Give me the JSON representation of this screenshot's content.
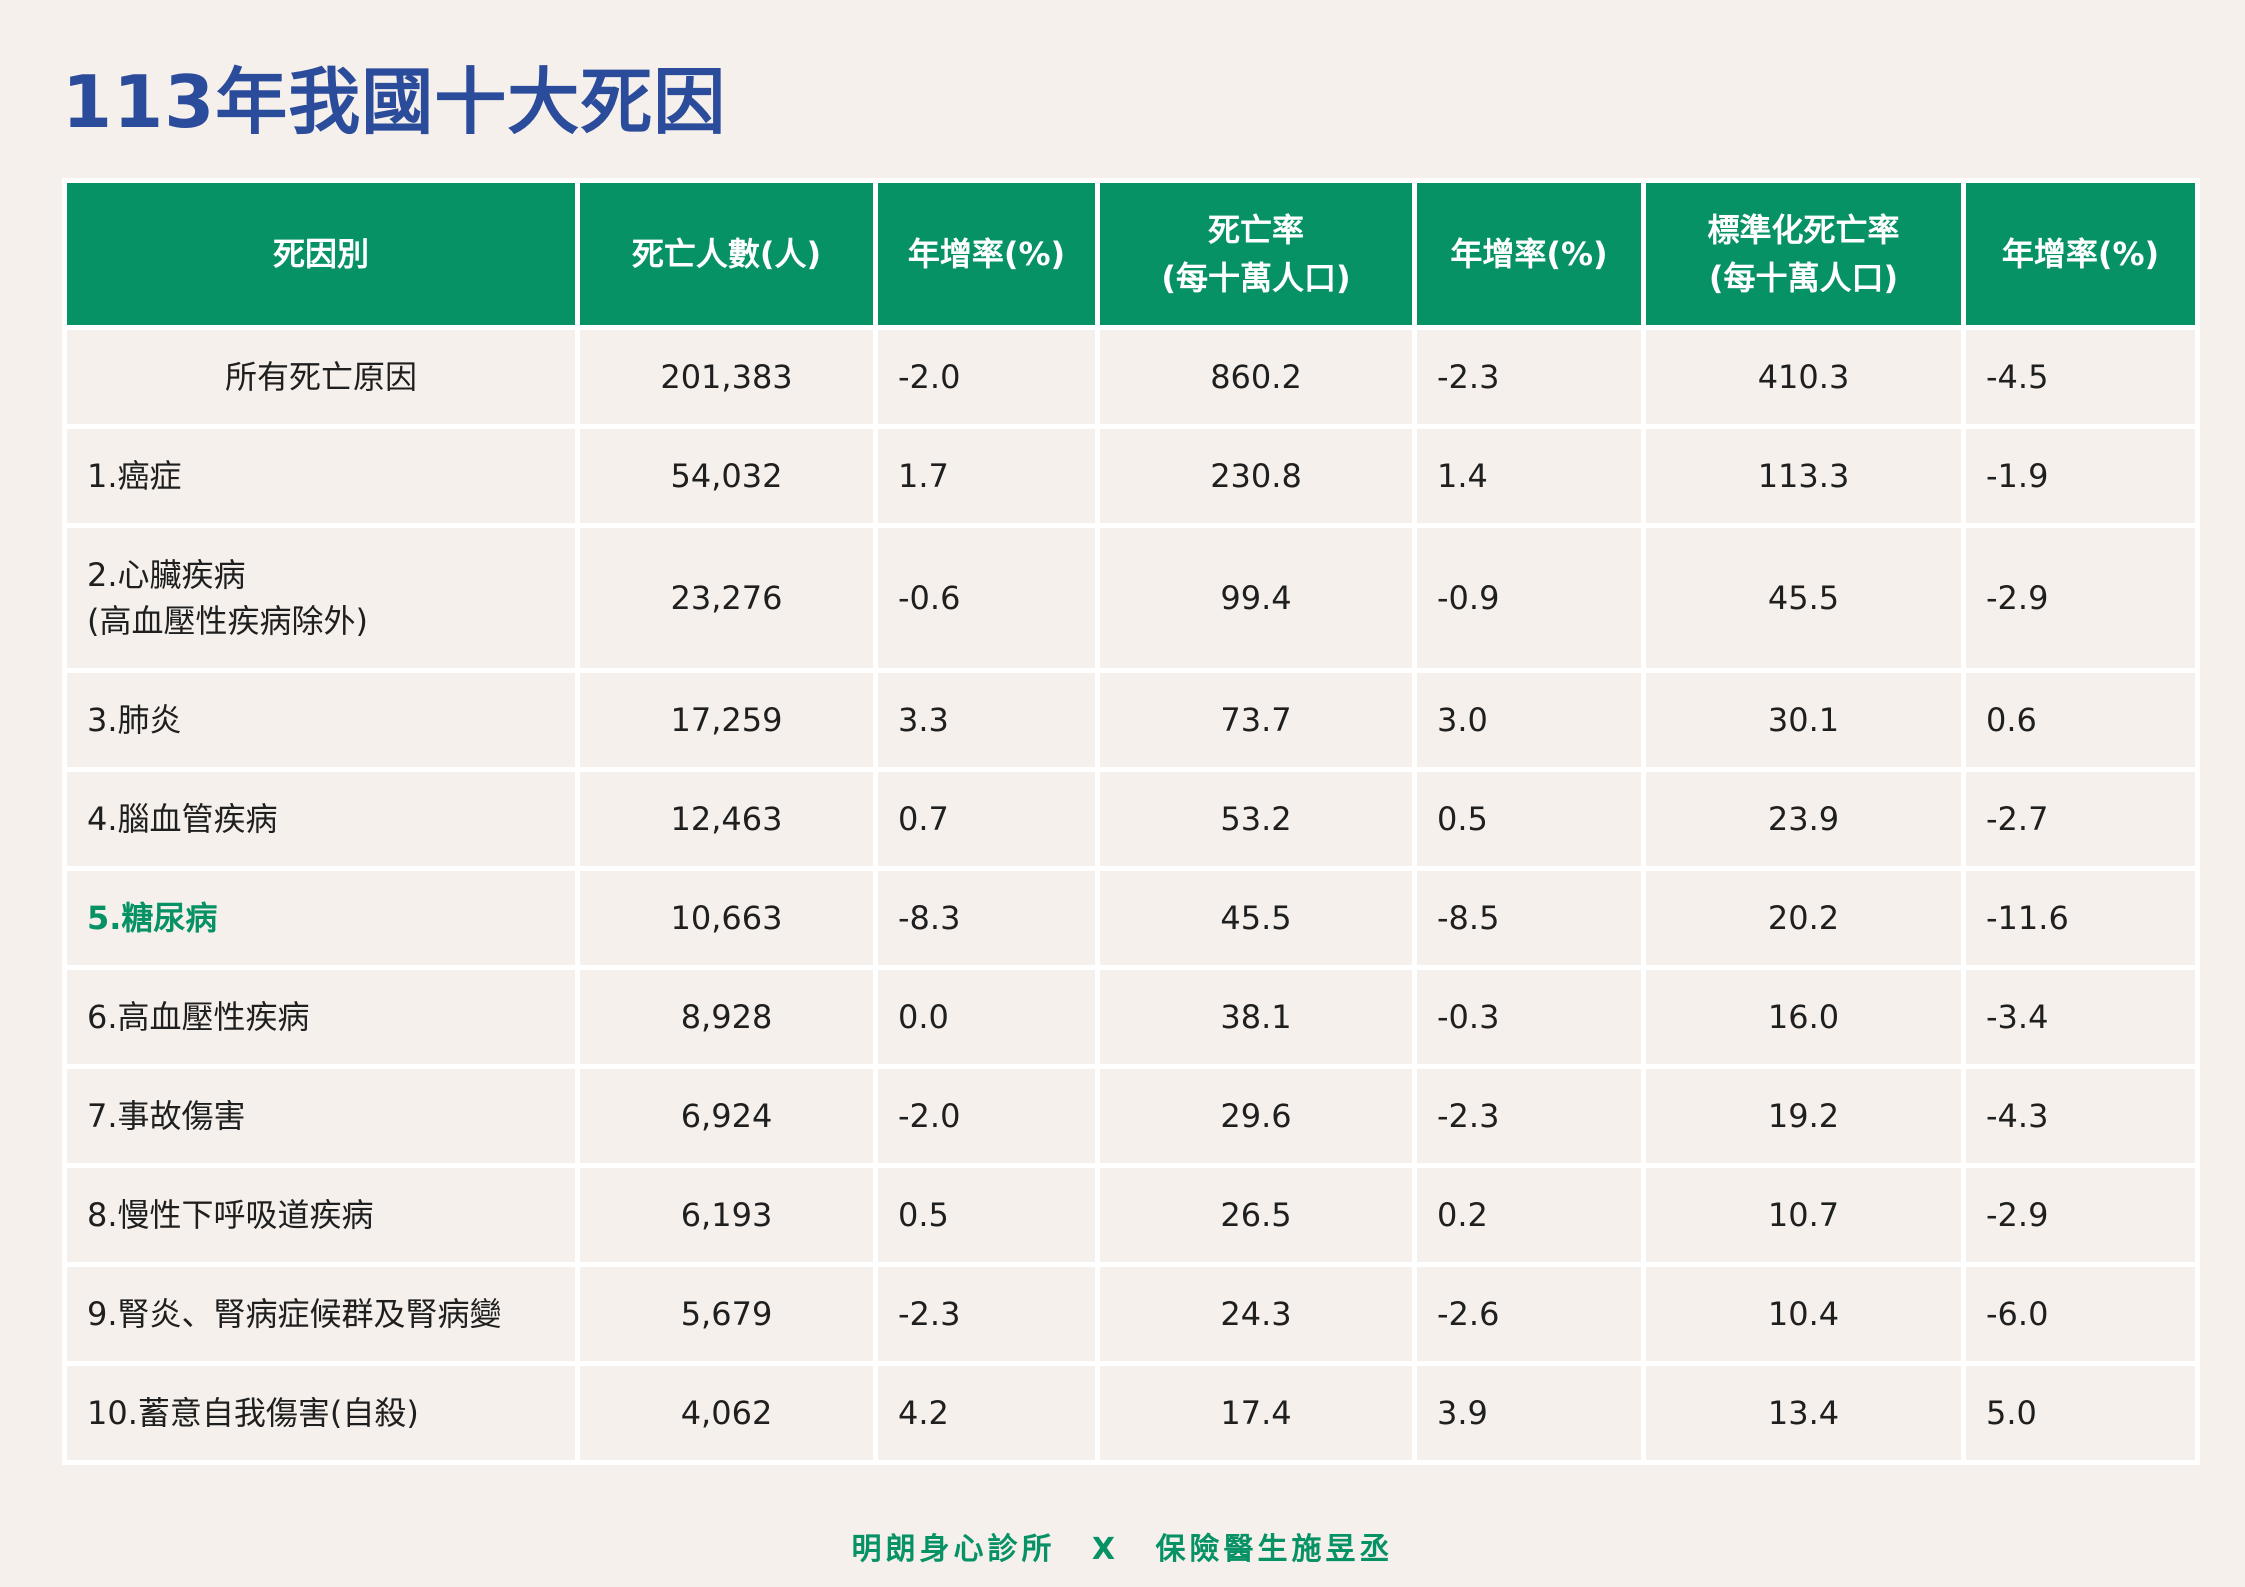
{
  "title": "113年我國十大死因",
  "headers": [
    {
      "line1": "死因別",
      "line2": ""
    },
    {
      "line1": "死亡人數(人)",
      "line2": ""
    },
    {
      "line1": "年增率(%)",
      "line2": ""
    },
    {
      "line1": "死亡率",
      "line2": "(每十萬人口)"
    },
    {
      "line1": "年增率(%)",
      "line2": ""
    },
    {
      "line1": "標準化死亡率",
      "line2": "(每十萬人口)"
    },
    {
      "line1": "年增率(%)",
      "line2": ""
    }
  ],
  "rows": [
    {
      "cause": "所有死亡原因",
      "cause2": "",
      "deaths": "201,383",
      "deaths_growth": "-2.0",
      "rate": "860.2",
      "rate_growth": "-2.3",
      "std_rate": "410.3",
      "std_growth": "-4.5"
    },
    {
      "cause": "1.癌症",
      "cause2": "",
      "deaths": "54,032",
      "deaths_growth": "1.7",
      "rate": "230.8",
      "rate_growth": "1.4",
      "std_rate": "113.3",
      "std_growth": "-1.9"
    },
    {
      "cause": "2.心臟疾病",
      "cause2": "(高血壓性疾病除外)",
      "deaths": "23,276",
      "deaths_growth": "-0.6",
      "rate": "99.4",
      "rate_growth": "-0.9",
      "std_rate": "45.5",
      "std_growth": "-2.9"
    },
    {
      "cause": "3.肺炎",
      "cause2": "",
      "deaths": "17,259",
      "deaths_growth": "3.3",
      "rate": "73.7",
      "rate_growth": "3.0",
      "std_rate": "30.1",
      "std_growth": "0.6"
    },
    {
      "cause": "4.腦血管疾病",
      "cause2": "",
      "deaths": "12,463",
      "deaths_growth": "0.7",
      "rate": "53.2",
      "rate_growth": "0.5",
      "std_rate": "23.9",
      "std_growth": "-2.7"
    },
    {
      "cause": "5.糖尿病",
      "cause2": "",
      "deaths": "10,663",
      "deaths_growth": "-8.3",
      "rate": "45.5",
      "rate_growth": "-8.5",
      "std_rate": "20.2",
      "std_growth": "-11.6"
    },
    {
      "cause": "6.高血壓性疾病",
      "cause2": "",
      "deaths": "8,928",
      "deaths_growth": "0.0",
      "rate": "38.1",
      "rate_growth": "-0.3",
      "std_rate": "16.0",
      "std_growth": "-3.4"
    },
    {
      "cause": "7.事故傷害",
      "cause2": "",
      "deaths": "6,924",
      "deaths_growth": "-2.0",
      "rate": "29.6",
      "rate_growth": "-2.3",
      "std_rate": "19.2",
      "std_growth": "-4.3"
    },
    {
      "cause": "8.慢性下呼吸道疾病",
      "cause2": "",
      "deaths": "6,193",
      "deaths_growth": "0.5",
      "rate": "26.5",
      "rate_growth": "0.2",
      "std_rate": "10.7",
      "std_growth": "-2.9"
    },
    {
      "cause": "9.腎炎、腎病症候群及腎病變",
      "cause2": "",
      "deaths": "5,679",
      "deaths_growth": "-2.3",
      "rate": "24.3",
      "rate_growth": "-2.6",
      "std_rate": "10.4",
      "std_growth": "-6.0"
    },
    {
      "cause": "10.蓄意自我傷害(自殺)",
      "cause2": "",
      "deaths": "4,062",
      "deaths_growth": "4.2",
      "rate": "17.4",
      "rate_growth": "3.9",
      "std_rate": "13.4",
      "std_growth": "5.0"
    }
  ],
  "footer": {
    "left": "明朗身心診所",
    "separator": "X",
    "right": "保險醫生施昱丞"
  },
  "colors": {
    "title": "#2b4b9b",
    "header_bg": "#079266",
    "highlight": "#079266",
    "background": "#f5f0ec"
  }
}
